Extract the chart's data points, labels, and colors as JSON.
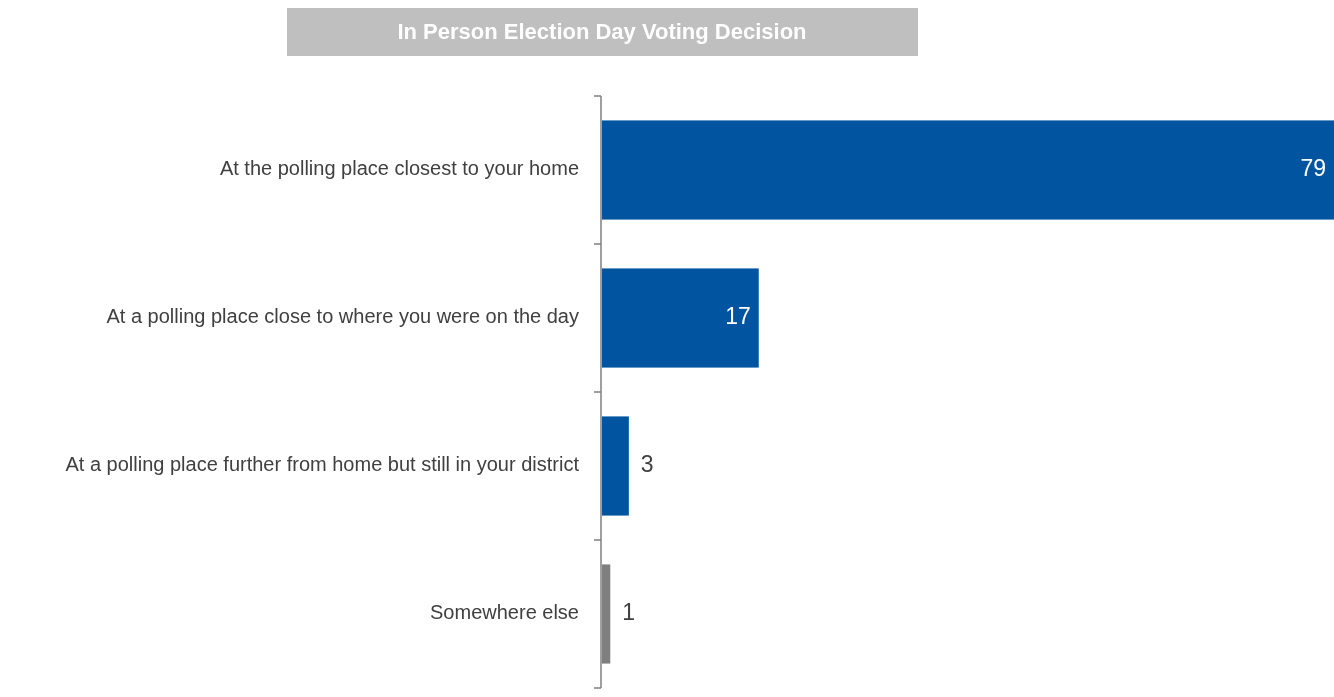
{
  "chart_data": {
    "type": "bar",
    "orientation": "horizontal",
    "title": "In Person Election Day Voting Decision",
    "categories": [
      "At the polling place closest to your home",
      "At a polling place close to where you were on the day",
      "At a polling place further from home but still in your district",
      "Somewhere else"
    ],
    "values": [
      79,
      17,
      3,
      1
    ],
    "colors": [
      "#0054a0",
      "#0054a0",
      "#0054a0",
      "#7f7f7f"
    ],
    "data_labels": true
  }
}
